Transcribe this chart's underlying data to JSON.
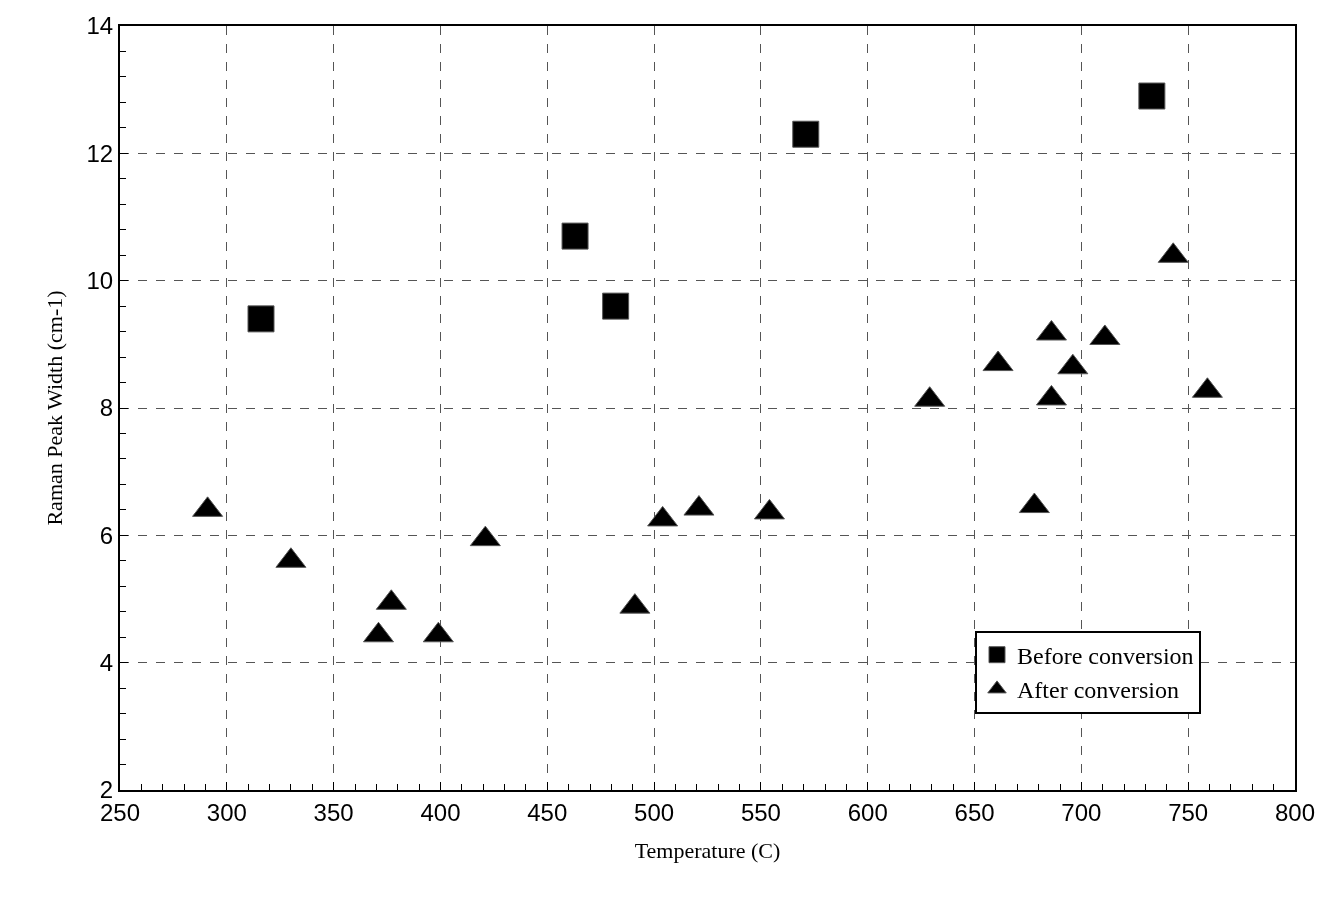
{
  "chart_data": {
    "type": "scatter",
    "xlabel": "Temperature (C)",
    "ylabel": "Raman Peak Width (cm-1)",
    "xlim": [
      250,
      800
    ],
    "xticks": [
      250,
      300,
      350,
      400,
      450,
      500,
      550,
      600,
      650,
      700,
      750,
      800
    ],
    "ylim": [
      2,
      14
    ],
    "yticks": [
      2,
      4,
      6,
      8,
      10,
      12,
      14
    ],
    "grid": true,
    "legend": "bottom right",
    "series": [
      {
        "name": "Before conversion",
        "color": "#000000",
        "marker": "square",
        "x": [
          316,
          463,
          482,
          571,
          733
        ],
        "values": [
          9.4,
          10.7,
          9.6,
          12.3,
          12.9
        ]
      },
      {
        "name": "After conversion",
        "color": "#000000",
        "marker": "triangle",
        "x": [
          291,
          330,
          371,
          377,
          399,
          421,
          491,
          504,
          521,
          554,
          629,
          661,
          678,
          686,
          686,
          696,
          711,
          743,
          759
        ],
        "values": [
          6.4,
          5.6,
          4.43,
          4.94,
          4.43,
          5.94,
          4.88,
          6.25,
          6.42,
          6.36,
          8.13,
          8.69,
          6.46,
          9.17,
          8.15,
          8.64,
          9.1,
          10.39,
          8.27
        ]
      }
    ]
  }
}
